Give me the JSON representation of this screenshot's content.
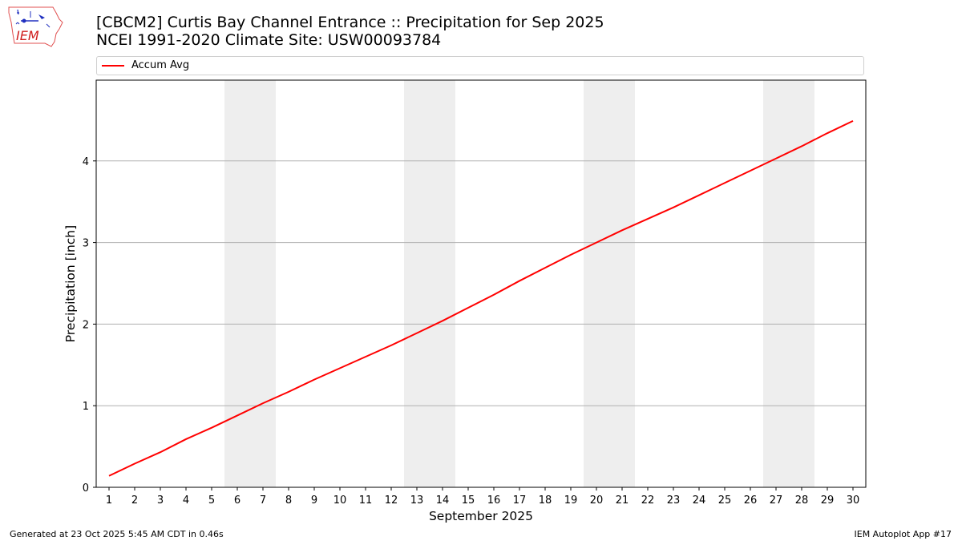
{
  "logo": {
    "text": "IEM",
    "icon": "iem-iowa-logo-icon"
  },
  "chart_data": {
    "type": "line",
    "title": "[CBCM2] Curtis Bay Channel Entrance :: Precipitation for Sep 2025",
    "subtitle": "NCEI 1991-2020 Climate Site: USW00093784",
    "xlabel": "September 2025",
    "ylabel": "Precipitation [inch]",
    "x": [
      1,
      2,
      3,
      4,
      5,
      6,
      7,
      8,
      9,
      10,
      11,
      12,
      13,
      14,
      15,
      16,
      17,
      18,
      19,
      20,
      21,
      22,
      23,
      24,
      25,
      26,
      27,
      28,
      29,
      30
    ],
    "x_tick_labels": [
      "1",
      "2",
      "3",
      "4",
      "5",
      "6",
      "7",
      "8",
      "9",
      "10",
      "11",
      "12",
      "13",
      "14",
      "15",
      "16",
      "17",
      "18",
      "19",
      "20",
      "21",
      "22",
      "23",
      "24",
      "25",
      "26",
      "27",
      "28",
      "29",
      "30"
    ],
    "y_tick_labels": [
      "0",
      "1",
      "2",
      "3",
      "4"
    ],
    "y_ticks": [
      0,
      1,
      2,
      3,
      4
    ],
    "xlim": [
      0.5,
      30.5
    ],
    "ylim": [
      0,
      4.99
    ],
    "grid": "horizontal",
    "legend_position": "top",
    "weekend_shading": [
      [
        6,
        7
      ],
      [
        13,
        14
      ],
      [
        20,
        21
      ],
      [
        27,
        28
      ]
    ],
    "series": [
      {
        "name": "Accum Avg",
        "color": "#ff0000",
        "values": [
          0.14,
          0.29,
          0.43,
          0.59,
          0.73,
          0.88,
          1.03,
          1.17,
          1.32,
          1.46,
          1.6,
          1.74,
          1.89,
          2.04,
          2.2,
          2.36,
          2.53,
          2.69,
          2.85,
          3.0,
          3.15,
          3.29,
          3.43,
          3.58,
          3.73,
          3.88,
          4.03,
          4.18,
          4.34,
          4.49
        ]
      }
    ]
  },
  "footer": {
    "generated": "Generated at 23 Oct 2025 5:45 AM CDT in 0.46s",
    "app": "IEM Autoplot App #17"
  }
}
